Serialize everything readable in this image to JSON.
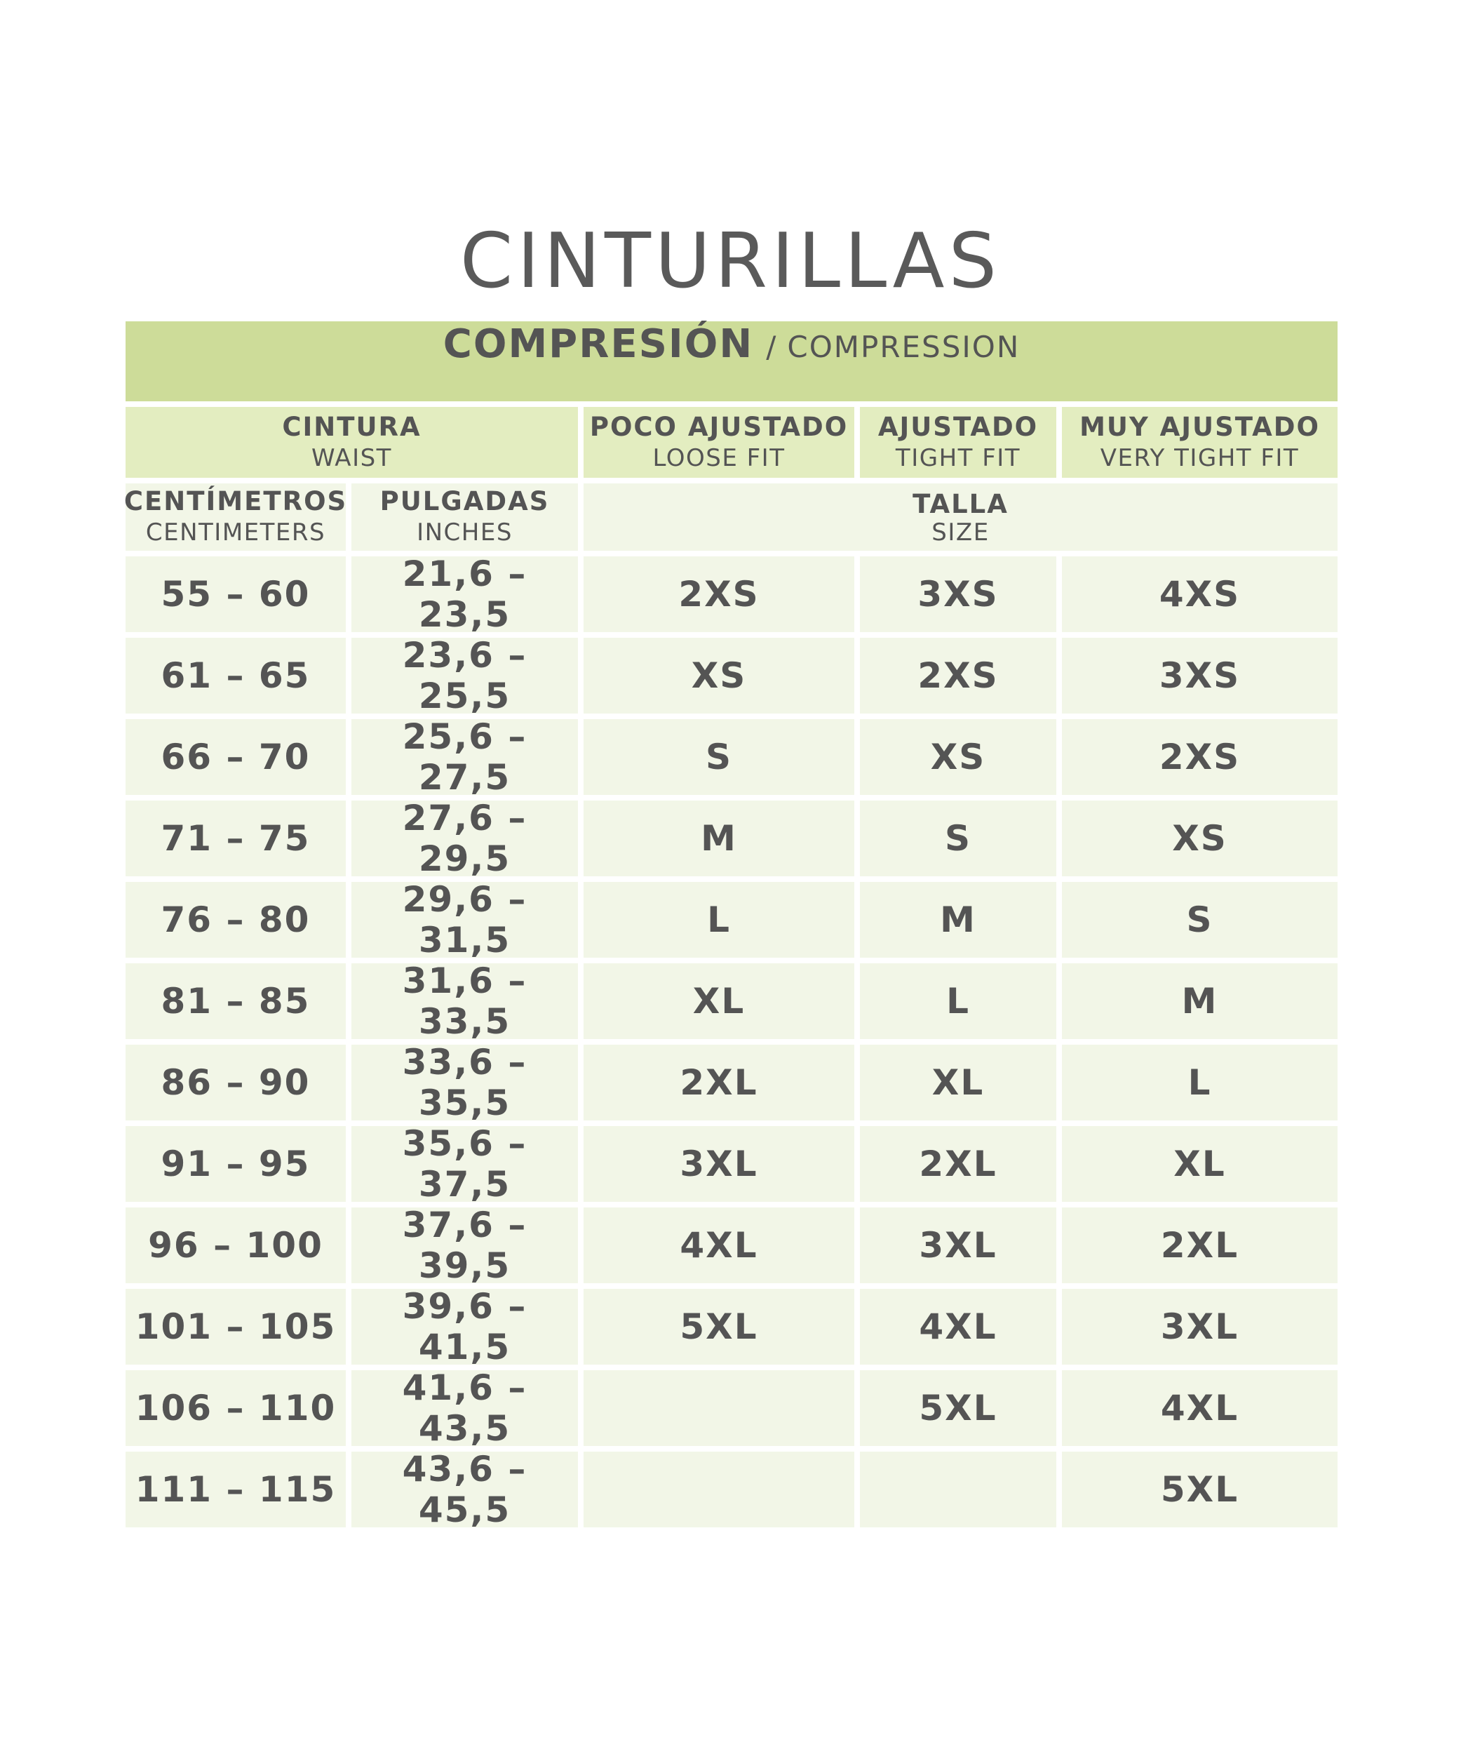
{
  "title": "CINTURILLAS",
  "header": {
    "main": "COMPRESIÓN",
    "separator": "/",
    "secondary": "COMPRESSION"
  },
  "columns": {
    "waist": {
      "es": "CINTURA",
      "en": "WAIST"
    },
    "loose": {
      "es": "POCO AJUSTADO",
      "en": "LOOSE FIT"
    },
    "tight": {
      "es": "AJUSTADO",
      "en": "TIGHT FIT"
    },
    "very_tight": {
      "es": "MUY AJUSTADO",
      "en": "VERY TIGHT FIT"
    },
    "cm": {
      "es": "CENTÍMETROS",
      "en": "CENTIMETERS"
    },
    "inches": {
      "es": "PULGADAS",
      "en": "INCHES"
    },
    "size": {
      "es": "TALLA",
      "en": "SIZE"
    }
  },
  "rows": [
    [
      "55 – 60",
      "21,6 – 23,5",
      "2XS",
      "3XS",
      "4XS"
    ],
    [
      "61 – 65",
      "23,6 – 25,5",
      "XS",
      "2XS",
      "3XS"
    ],
    [
      "66 – 70",
      "25,6 – 27,5",
      "S",
      "XS",
      "2XS"
    ],
    [
      "71 – 75",
      "27,6 – 29,5",
      "M",
      "S",
      "XS"
    ],
    [
      "76 – 80",
      "29,6 – 31,5",
      "L",
      "M",
      "S"
    ],
    [
      "81 – 85",
      "31,6 – 33,5",
      "XL",
      "L",
      "M"
    ],
    [
      "86 – 90",
      "33,6 – 35,5",
      "2XL",
      "XL",
      "L"
    ],
    [
      "91 – 95",
      "35,6 – 37,5",
      "3XL",
      "2XL",
      "XL"
    ],
    [
      "96 – 100",
      "37,6 – 39,5",
      "4XL",
      "3XL",
      "2XL"
    ],
    [
      "101 – 105",
      "39,6 – 41,5",
      "5XL",
      "4XL",
      "3XL"
    ],
    [
      "106 – 110",
      "41,6 – 43,5",
      "",
      "5XL",
      "4XL"
    ],
    [
      "111 – 115",
      "43,6 – 45,5",
      "",
      "",
      "5XL"
    ]
  ],
  "colors": {
    "header": "#cddc99",
    "subheader": "#e3edc0",
    "cell": "#f2f6e7",
    "text": "#545454"
  }
}
